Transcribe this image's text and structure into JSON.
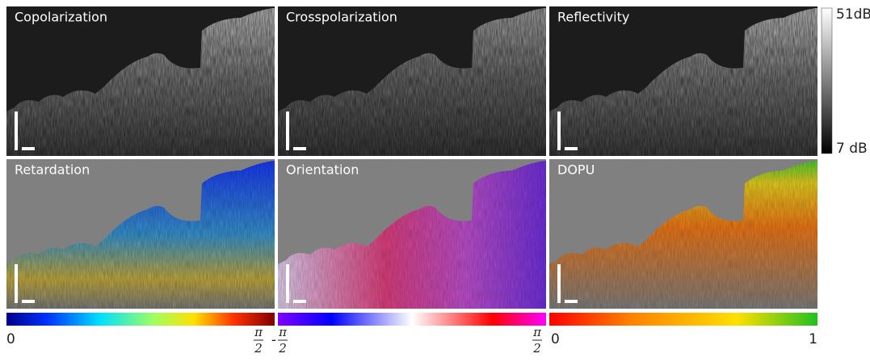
{
  "panels": [
    {
      "title": "Copolarization"
    },
    {
      "title": "Crosspolarization"
    },
    {
      "title": "Reflectivity"
    },
    {
      "title": "Retardation"
    },
    {
      "title": "Orientation"
    },
    {
      "title": "DOPU"
    }
  ],
  "grayscale_bar": {
    "top_label": "51dB",
    "bottom_label": "7 dB"
  },
  "colorbars": [
    {
      "left_label": "0",
      "right_label": {
        "numerator": "π",
        "denominator": "2"
      }
    },
    {
      "left_label": {
        "sign": "-",
        "numerator": "π",
        "denominator": "2"
      },
      "right_label": {
        "numerator": "π",
        "denominator": "2"
      }
    },
    {
      "left_label": "0",
      "right_label": "1"
    }
  ]
}
